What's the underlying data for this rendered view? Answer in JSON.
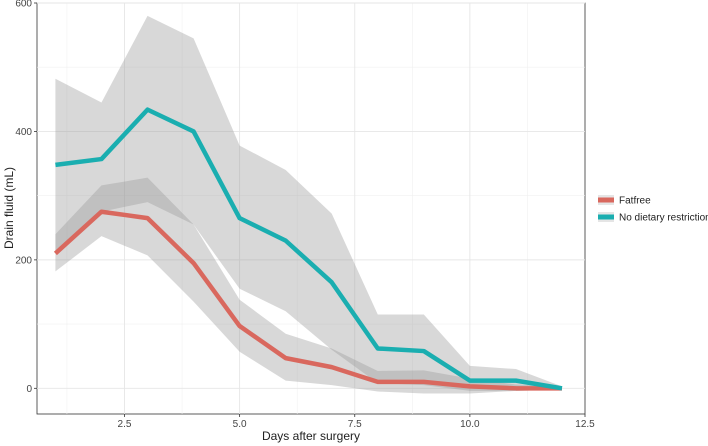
{
  "chart_data": {
    "type": "line",
    "title": "",
    "xlabel": "Days after surgery",
    "ylabel": "Drain fluid (mL)",
    "xlim": [
      0.6,
      12.5
    ],
    "ylim": [
      -40,
      600
    ],
    "x_ticks": [
      2.5,
      5.0,
      7.5,
      10.0,
      12.5
    ],
    "x_tick_labels": [
      "2.5",
      "5.0",
      "7.5",
      "10.0",
      "12.5"
    ],
    "y_ticks": [
      0,
      200,
      400,
      600
    ],
    "y_tick_labels": [
      "0",
      "200",
      "400",
      "600"
    ],
    "grid": true,
    "legend_position": "right",
    "x": [
      1,
      2,
      3,
      4,
      5,
      6,
      7,
      8,
      9,
      10,
      11,
      12
    ],
    "series": [
      {
        "name": "Fatfree",
        "color": "#d9685e",
        "values": [
          210,
          275,
          265,
          195,
          97,
          47,
          33,
          10,
          10,
          3,
          0,
          0
        ],
        "ci_lower": [
          182,
          237,
          207,
          135,
          57,
          12,
          5,
          -5,
          -8,
          -8,
          -4,
          -2
        ],
        "ci_upper": [
          240,
          316,
          328,
          255,
          138,
          85,
          62,
          27,
          28,
          15,
          6,
          3
        ]
      },
      {
        "name": "No dietary restrictions",
        "color": "#1aaeb0",
        "values": [
          348,
          357,
          434,
          400,
          265,
          230,
          165,
          62,
          58,
          12,
          12,
          0
        ],
        "ci_lower": [
          215,
          275,
          290,
          255,
          155,
          120,
          60,
          8,
          5,
          -4,
          -4,
          -2
        ],
        "ci_upper": [
          482,
          445,
          580,
          545,
          378,
          340,
          272,
          115,
          115,
          35,
          30,
          3
        ]
      }
    ]
  }
}
